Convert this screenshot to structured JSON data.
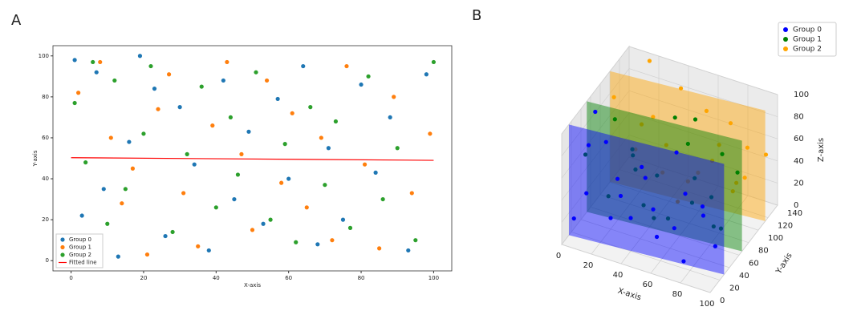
{
  "chart_data": [
    {
      "type": "scatter",
      "panel": "A",
      "xlabel": "X-axis",
      "ylabel": "Y-axis",
      "xlim": [
        -5,
        105
      ],
      "ylim": [
        -5,
        105
      ],
      "xticks": [
        0,
        20,
        40,
        60,
        80,
        100
      ],
      "yticks": [
        0,
        20,
        40,
        60,
        80,
        100
      ],
      "legend": "lower left",
      "series": [
        {
          "name": "Group 0",
          "color": "#1f77b4",
          "x": [
            1,
            3,
            7,
            9,
            13,
            16,
            19,
            23,
            26,
            30,
            34,
            38,
            42,
            45,
            49,
            53,
            57,
            60,
            64,
            68,
            71,
            75,
            80,
            84,
            88,
            93,
            98
          ],
          "y": [
            98,
            22,
            92,
            35,
            2,
            58,
            100,
            84,
            12,
            75,
            47,
            5,
            88,
            30,
            63,
            18,
            79,
            40,
            95,
            8,
            55,
            20,
            86,
            43,
            70,
            5,
            91
          ]
        },
        {
          "name": "Group 1",
          "color": "#ff7f0e",
          "x": [
            2,
            5,
            8,
            11,
            14,
            17,
            21,
            24,
            27,
            31,
            35,
            39,
            43,
            47,
            50,
            54,
            58,
            61,
            65,
            69,
            72,
            76,
            81,
            85,
            89,
            94,
            99
          ],
          "y": [
            82,
            12,
            97,
            60,
            28,
            45,
            3,
            74,
            91,
            33,
            7,
            66,
            97,
            52,
            15,
            88,
            38,
            72,
            26,
            60,
            10,
            95,
            47,
            6,
            80,
            33,
            62
          ]
        },
        {
          "name": "Group 2",
          "color": "#2ca02c",
          "x": [
            1,
            4,
            6,
            10,
            12,
            15,
            20,
            22,
            28,
            32,
            36,
            40,
            44,
            46,
            51,
            55,
            59,
            62,
            66,
            70,
            73,
            77,
            82,
            86,
            90,
            95,
            100
          ],
          "y": [
            77,
            48,
            97,
            18,
            88,
            35,
            62,
            95,
            14,
            52,
            85,
            26,
            70,
            42,
            92,
            20,
            57,
            9,
            75,
            37,
            68,
            16,
            90,
            30,
            55,
            10,
            97
          ]
        }
      ],
      "fitted_line": {
        "name": "Fitted line",
        "color": "#ff0000",
        "x": [
          0,
          100
        ],
        "y": [
          50.3,
          49
        ]
      }
    },
    {
      "type": "scatter3d",
      "panel": "B",
      "xlabel": "X-axis",
      "ylabel": "Y-axis",
      "zlabel": "Z-axis",
      "xlim": [
        0,
        100
      ],
      "ylim": [
        0,
        140
      ],
      "zlim": [
        0,
        100
      ],
      "xticks": [
        0,
        20,
        40,
        60,
        80,
        100
      ],
      "yticks": [
        0,
        20,
        40,
        60,
        80,
        100,
        120,
        140
      ],
      "zticks": [
        0,
        20,
        40,
        60,
        80,
        100
      ],
      "legend": "upper right",
      "series": [
        {
          "name": "Group 0",
          "color": "#0000ff",
          "x": [
            5,
            10,
            15,
            20,
            25,
            30,
            35,
            40,
            45,
            50,
            55,
            60,
            65,
            70,
            75,
            80,
            85,
            90,
            95,
            8
          ],
          "y": [
            10,
            25,
            5,
            40,
            15,
            30,
            8,
            20,
            35,
            12,
            28,
            5,
            38,
            18,
            22,
            10,
            32,
            15,
            26,
            45
          ],
          "z": [
            20,
            80,
            50,
            10,
            95,
            40,
            70,
            30,
            60,
            85,
            15,
            55,
            90,
            35,
            5,
            75,
            45,
            65,
            25,
            98
          ]
        },
        {
          "name": "Group 1",
          "color": "#008000",
          "x": [
            3,
            12,
            18,
            27,
            33,
            41,
            48,
            52,
            58,
            63,
            69,
            74,
            79,
            84,
            88,
            93,
            97,
            22,
            37,
            66
          ],
          "y": [
            40,
            60,
            55,
            70,
            45,
            65,
            50,
            75,
            42,
            68,
            58,
            48,
            72,
            52,
            62,
            44,
            66,
            80,
            56,
            74
          ],
          "z": [
            60,
            15,
            90,
            40,
            75,
            5,
            55,
            95,
            25,
            80,
            35,
            65,
            10,
            50,
            85,
            30,
            70,
            45,
            20,
            100
          ]
        },
        {
          "name": "Group 2",
          "color": "#ffa500",
          "x": [
            6,
            14,
            23,
            29,
            38,
            43,
            51,
            57,
            62,
            71,
            77,
            82,
            87,
            92,
            98,
            17,
            47,
            67,
            33,
            80
          ],
          "y": [
            90,
            110,
            95,
            120,
            100,
            115,
            105,
            125,
            92,
            108,
            118,
            98,
            112,
            102,
            122,
            130,
            96,
            106,
            88,
            116
          ],
          "z": [
            85,
            30,
            65,
            10,
            50,
            95,
            20,
            75,
            40,
            60,
            15,
            90,
            35,
            70,
            55,
            100,
            5,
            45,
            80,
            25
          ]
        }
      ]
    }
  ]
}
